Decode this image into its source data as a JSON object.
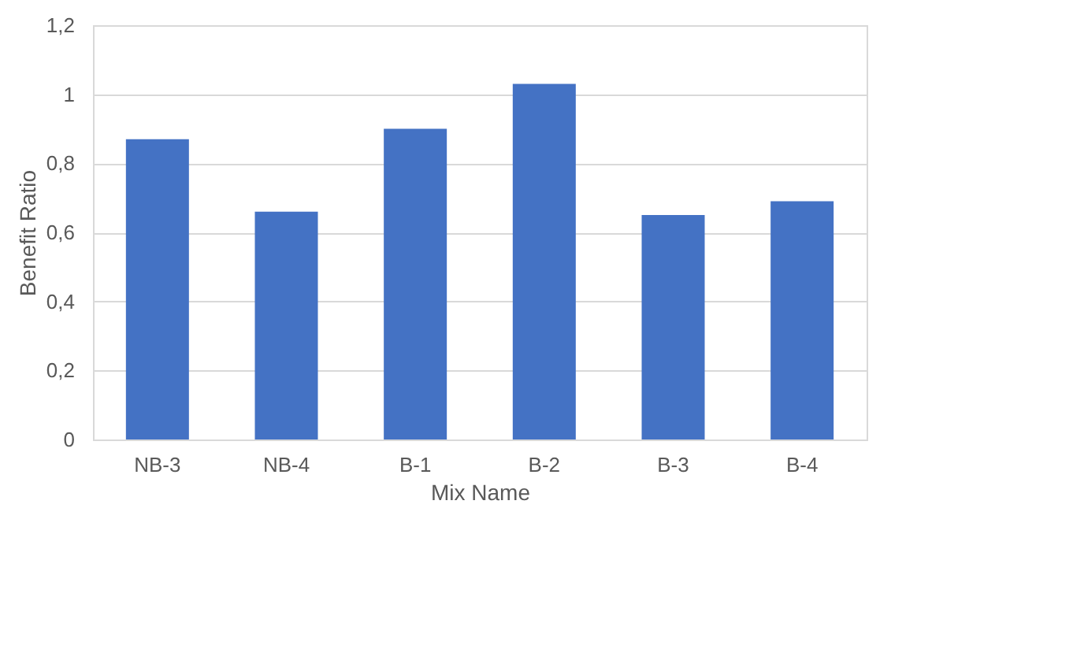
{
  "chart_data": {
    "type": "bar",
    "xlabel": "Mix Name",
    "ylabel": "Benefit Ratio",
    "categories": [
      "NB-3",
      "NB-4",
      "B-1",
      "B-2",
      "B-3",
      "B-4"
    ],
    "values": [
      0.87,
      0.66,
      0.9,
      1.03,
      0.65,
      0.69
    ],
    "color": "#4472c4",
    "ylim": [
      0,
      1.2
    ],
    "yticks": [
      0,
      {
        "value": 0.2,
        "label": "0,2"
      },
      {
        "value": 0.4,
        "label": "0,4"
      },
      {
        "value": 0.6,
        "label": "0,6"
      },
      {
        "value": 0.8,
        "label": "0,8"
      },
      1,
      {
        "value": 1.2,
        "label": "1,2"
      }
    ],
    "grid": "y"
  }
}
